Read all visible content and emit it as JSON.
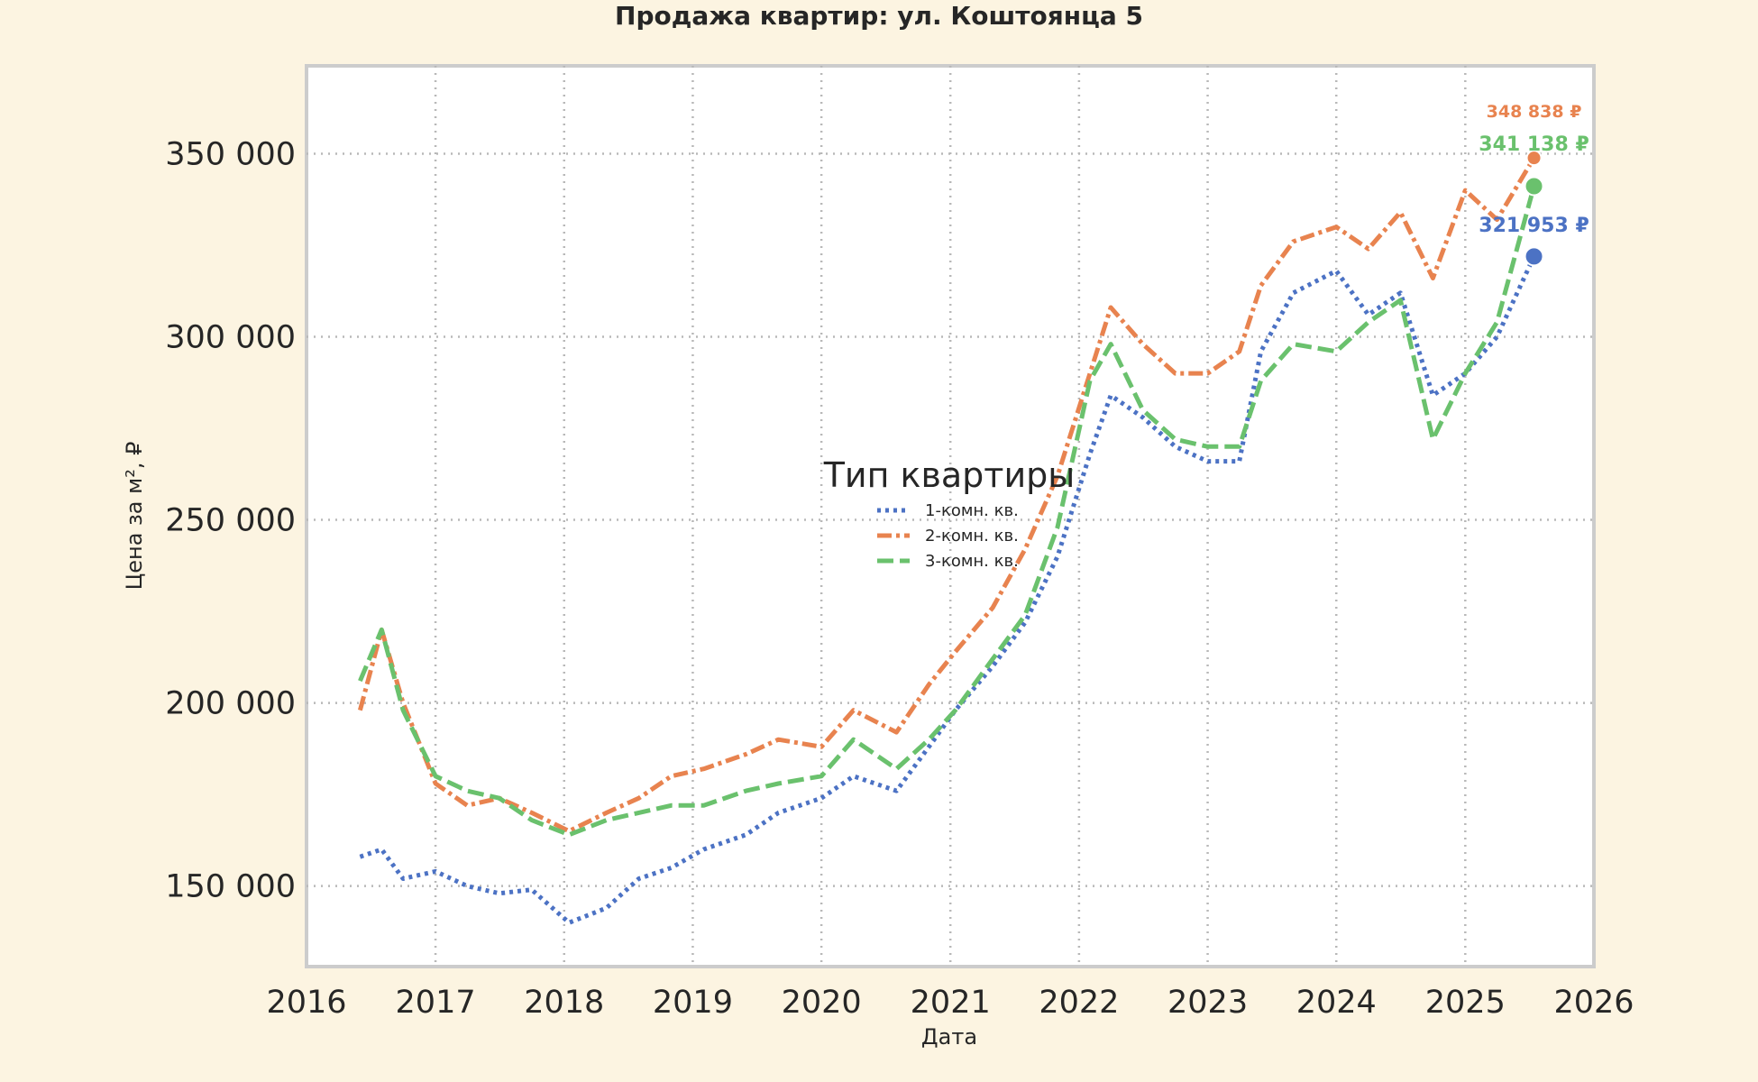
{
  "chart_data": {
    "type": "line",
    "title": "Продажа квартир: ул. Коштоянца 5",
    "xlabel": "Дата",
    "ylabel": "Цена за м², ₽",
    "xlim": [
      "2016-01-01",
      "2026-01-01"
    ],
    "ylim": [
      128000,
      374000
    ],
    "x_ticks": [
      "2016",
      "2017",
      "2018",
      "2019",
      "2020",
      "2021",
      "2022",
      "2023",
      "2024",
      "2025",
      "2026"
    ],
    "y_ticks": [
      150000,
      200000,
      250000,
      300000,
      350000
    ],
    "y_tick_labels": [
      "150 000",
      "200 000",
      "250 000",
      "300 000",
      "350 000"
    ],
    "grid": true,
    "legend": {
      "title": "Тип квартиры",
      "placement": "center",
      "entries": [
        "1-комн. кв.",
        "2-комн. кв.",
        "3-комн. кв."
      ]
    },
    "series": [
      {
        "name": "1-комн. кв.",
        "color": "#4c72c4",
        "style": "dotted",
        "points": [
          [
            "2016-06-01",
            158000
          ],
          [
            "2016-08-01",
            160000
          ],
          [
            "2016-10-01",
            152000
          ],
          [
            "2017-01-01",
            154000
          ],
          [
            "2017-04-01",
            150000
          ],
          [
            "2017-07-01",
            148000
          ],
          [
            "2017-10-01",
            149000
          ],
          [
            "2018-01-15",
            140000
          ],
          [
            "2018-05-01",
            144000
          ],
          [
            "2018-08-01",
            152000
          ],
          [
            "2018-11-01",
            155000
          ],
          [
            "2019-02-01",
            160000
          ],
          [
            "2019-06-01",
            164000
          ],
          [
            "2019-09-01",
            170000
          ],
          [
            "2020-01-01",
            174000
          ],
          [
            "2020-04-01",
            180000
          ],
          [
            "2020-08-01",
            176000
          ],
          [
            "2020-11-01",
            188000
          ],
          [
            "2021-01-15",
            198000
          ],
          [
            "2021-05-01",
            210000
          ],
          [
            "2021-08-01",
            222000
          ],
          [
            "2021-11-01",
            240000
          ],
          [
            "2022-02-01",
            268000
          ],
          [
            "2022-04-01",
            284000
          ],
          [
            "2022-07-01",
            278000
          ],
          [
            "2022-10-01",
            270000
          ],
          [
            "2023-01-01",
            266000
          ],
          [
            "2023-04-01",
            266000
          ],
          [
            "2023-06-01",
            296000
          ],
          [
            "2023-09-01",
            312000
          ],
          [
            "2024-01-01",
            318000
          ],
          [
            "2024-04-01",
            306000
          ],
          [
            "2024-07-01",
            312000
          ],
          [
            "2024-10-01",
            284000
          ],
          [
            "2025-01-01",
            290000
          ],
          [
            "2025-04-01",
            300000
          ],
          [
            "2025-07-15",
            321953
          ]
        ]
      },
      {
        "name": "2-комн. кв.",
        "color": "#e8834f",
        "style": "dashdot",
        "points": [
          [
            "2016-06-01",
            198000
          ],
          [
            "2016-08-01",
            220000
          ],
          [
            "2016-10-01",
            200000
          ],
          [
            "2017-01-01",
            178000
          ],
          [
            "2017-04-01",
            172000
          ],
          [
            "2017-07-01",
            174000
          ],
          [
            "2017-10-01",
            170000
          ],
          [
            "2018-01-15",
            165000
          ],
          [
            "2018-05-01",
            170000
          ],
          [
            "2018-08-01",
            174000
          ],
          [
            "2018-11-01",
            180000
          ],
          [
            "2019-02-01",
            182000
          ],
          [
            "2019-06-01",
            186000
          ],
          [
            "2019-09-01",
            190000
          ],
          [
            "2020-01-01",
            188000
          ],
          [
            "2020-04-01",
            198000
          ],
          [
            "2020-08-01",
            192000
          ],
          [
            "2020-11-01",
            205000
          ],
          [
            "2021-01-15",
            214000
          ],
          [
            "2021-05-01",
            226000
          ],
          [
            "2021-08-01",
            242000
          ],
          [
            "2021-11-01",
            262000
          ],
          [
            "2022-02-01",
            290000
          ],
          [
            "2022-04-01",
            308000
          ],
          [
            "2022-07-01",
            298000
          ],
          [
            "2022-10-01",
            290000
          ],
          [
            "2023-01-01",
            290000
          ],
          [
            "2023-04-01",
            296000
          ],
          [
            "2023-06-01",
            314000
          ],
          [
            "2023-09-01",
            326000
          ],
          [
            "2024-01-01",
            330000
          ],
          [
            "2024-04-01",
            324000
          ],
          [
            "2024-07-01",
            334000
          ],
          [
            "2024-10-01",
            316000
          ],
          [
            "2025-01-01",
            340000
          ],
          [
            "2025-04-01",
            332000
          ],
          [
            "2025-07-15",
            348838
          ]
        ]
      },
      {
        "name": "3-комн. кв.",
        "color": "#6ac16d",
        "style": "dashed",
        "points": [
          [
            "2016-06-01",
            206000
          ],
          [
            "2016-08-01",
            220000
          ],
          [
            "2016-10-01",
            198000
          ],
          [
            "2017-01-01",
            180000
          ],
          [
            "2017-04-01",
            176000
          ],
          [
            "2017-07-01",
            174000
          ],
          [
            "2017-10-01",
            168000
          ],
          [
            "2018-01-15",
            164000
          ],
          [
            "2018-05-01",
            168000
          ],
          [
            "2018-08-01",
            170000
          ],
          [
            "2018-11-01",
            172000
          ],
          [
            "2019-02-01",
            172000
          ],
          [
            "2019-06-01",
            176000
          ],
          [
            "2019-09-01",
            178000
          ],
          [
            "2020-01-01",
            180000
          ],
          [
            "2020-04-01",
            190000
          ],
          [
            "2020-08-01",
            182000
          ],
          [
            "2020-11-01",
            190000
          ],
          [
            "2021-01-15",
            198000
          ],
          [
            "2021-05-01",
            212000
          ],
          [
            "2021-08-01",
            224000
          ],
          [
            "2021-11-01",
            248000
          ],
          [
            "2022-02-01",
            288000
          ],
          [
            "2022-04-01",
            298000
          ],
          [
            "2022-07-01",
            280000
          ],
          [
            "2022-10-01",
            272000
          ],
          [
            "2023-01-01",
            270000
          ],
          [
            "2023-04-01",
            270000
          ],
          [
            "2023-06-01",
            288000
          ],
          [
            "2023-09-01",
            298000
          ],
          [
            "2024-01-01",
            296000
          ],
          [
            "2024-04-01",
            304000
          ],
          [
            "2024-07-01",
            310000
          ],
          [
            "2024-10-01",
            272000
          ],
          [
            "2025-01-01",
            290000
          ],
          [
            "2025-04-01",
            304000
          ],
          [
            "2025-07-15",
            341138
          ]
        ]
      }
    ],
    "end_annotations": [
      {
        "series": "2-комн. кв.",
        "date": "2025-07-15",
        "value": 348838,
        "label": "348 838 ₽",
        "color": "#e8834f"
      },
      {
        "series": "3-комн. кв.",
        "date": "2025-07-15",
        "value": 341138,
        "label": "341 138 ₽",
        "color": "#6ac16d"
      },
      {
        "series": "1-комн. кв.",
        "date": "2025-07-15",
        "value": 321953,
        "label": "321 953 ₽",
        "color": "#4c72c4"
      }
    ]
  }
}
